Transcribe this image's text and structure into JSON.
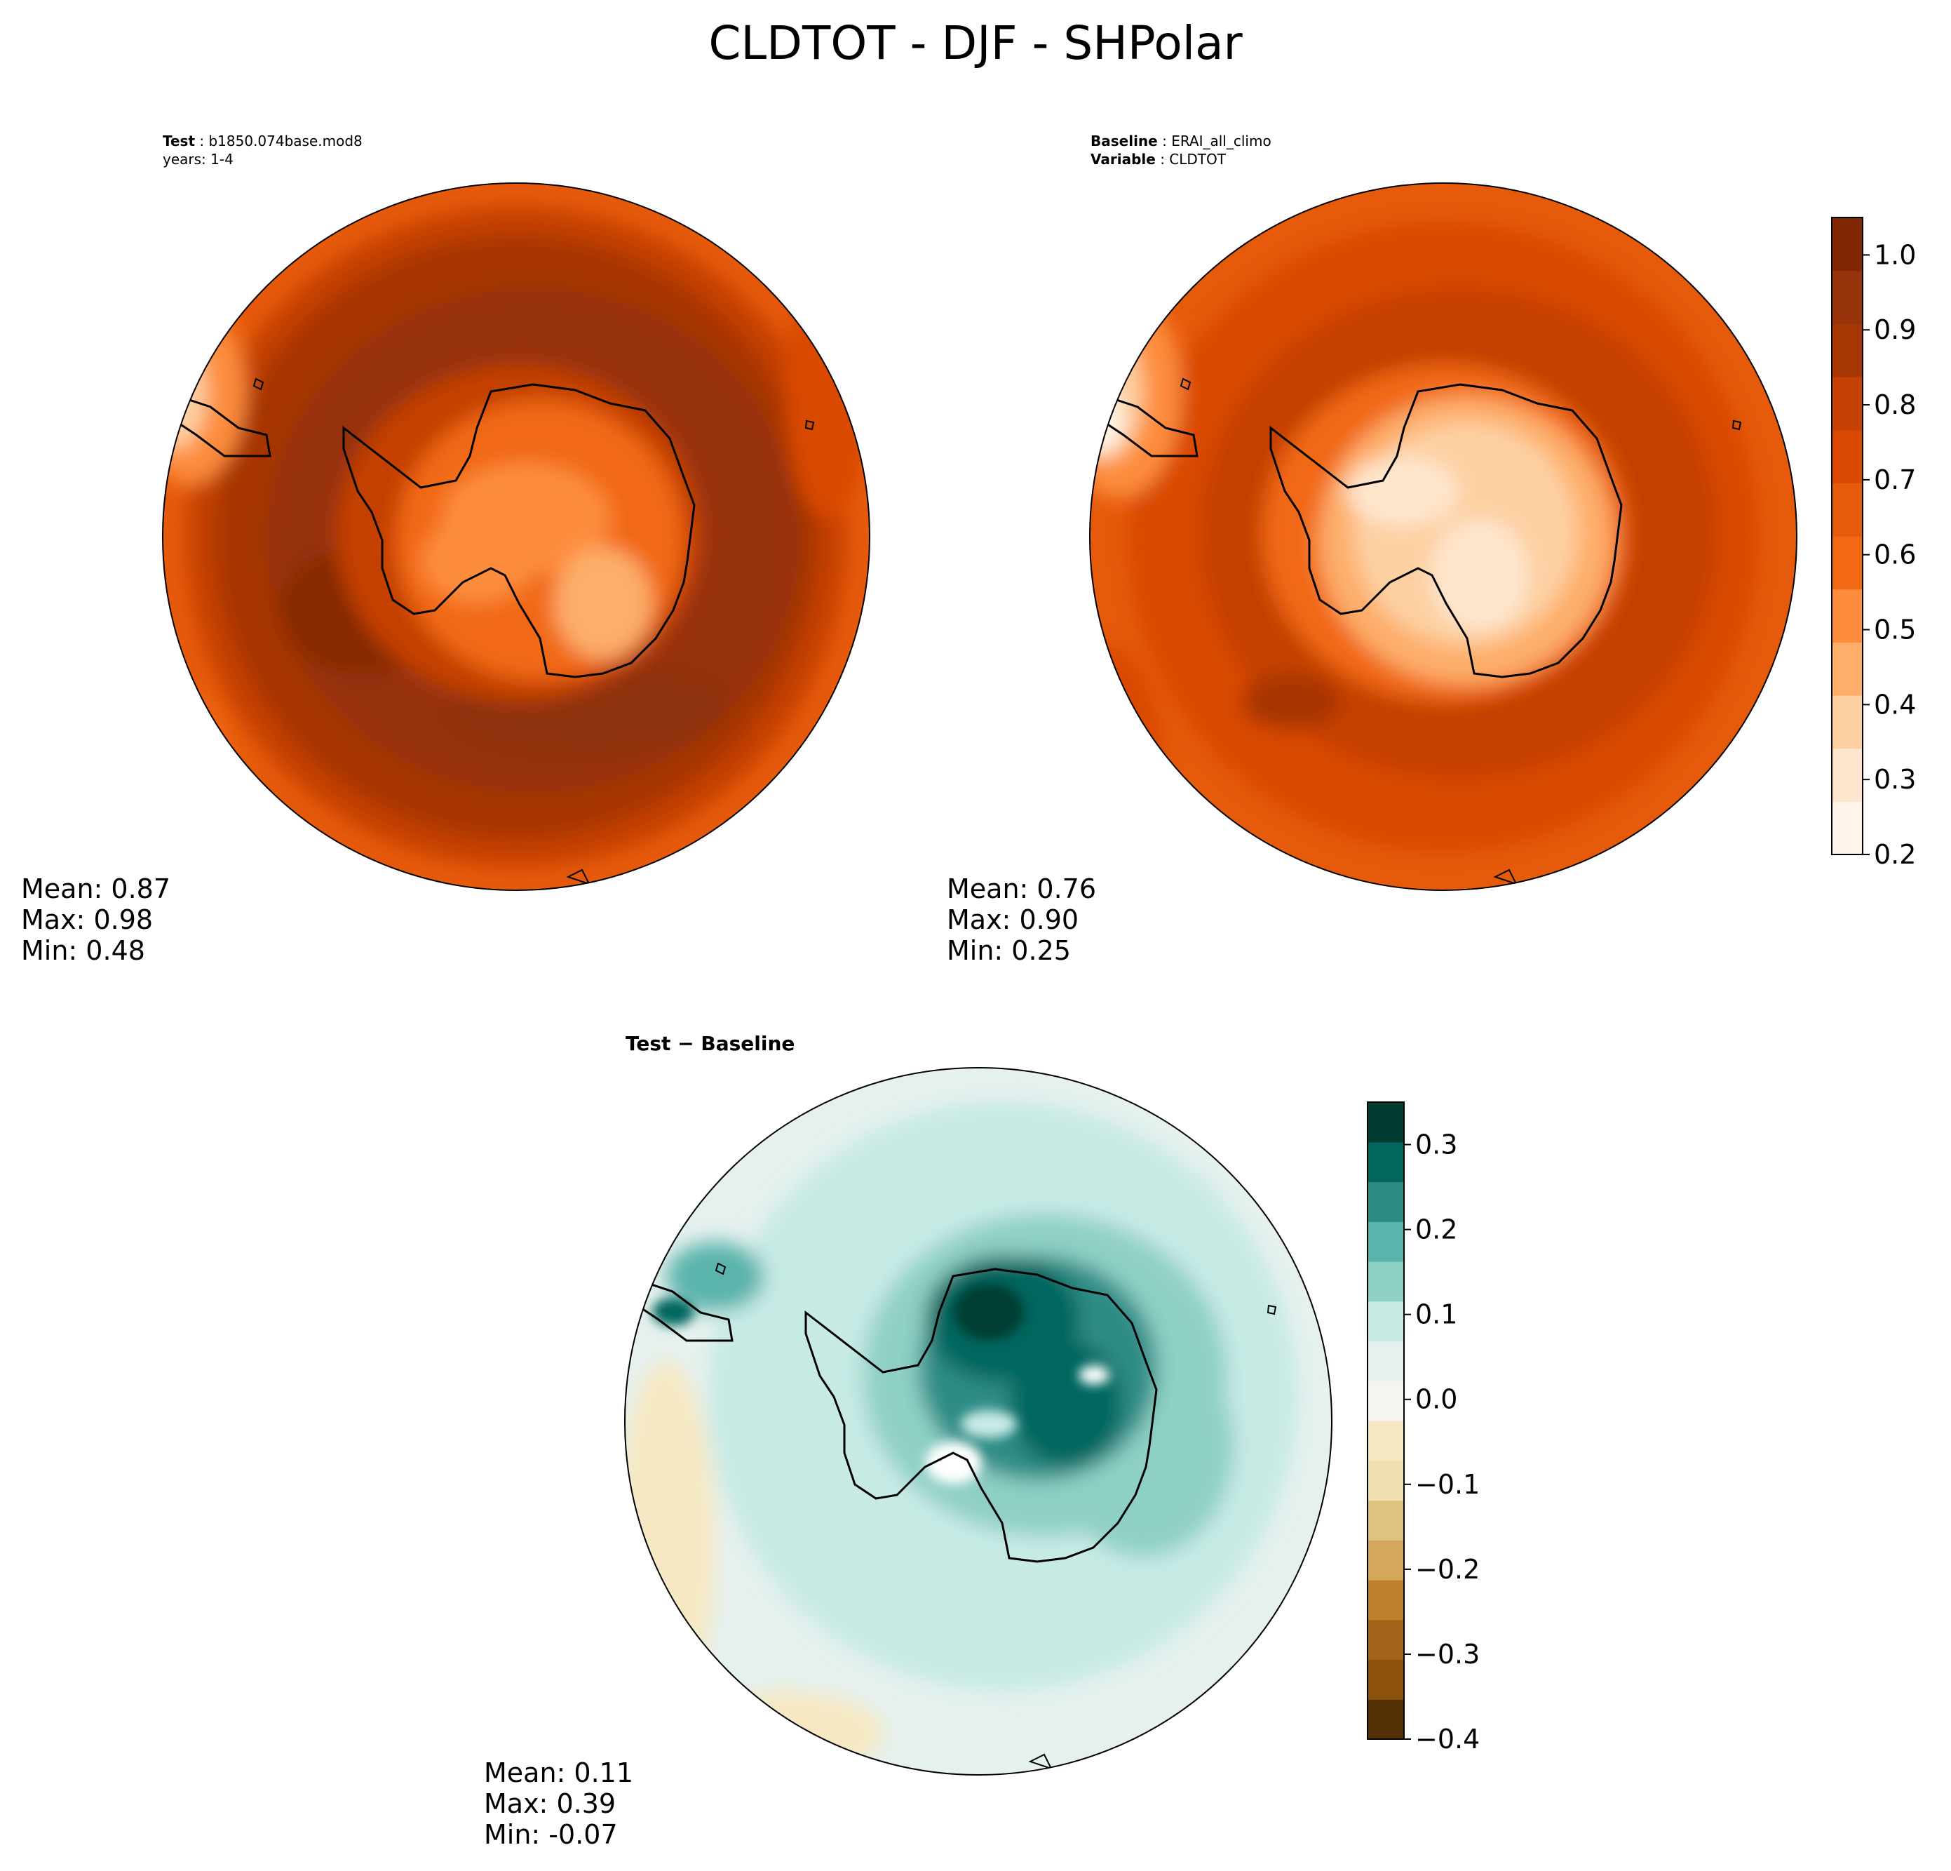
{
  "title": "CLDTOT - DJF - SHPolar",
  "panels": {
    "test": {
      "label_bold": "Test",
      "label_value": "b1850.074base.mod8",
      "years": "years: 1-4",
      "stats": [
        "Mean:  0.87",
        "Max:  0.98",
        "Min:  0.48"
      ]
    },
    "baseline": {
      "label_bold": "Baseline",
      "label_value": "ERAI_all_climo",
      "variable_bold": "Variable",
      "variable_value": "CLDTOT",
      "stats": [
        "Mean:  0.76",
        "Max:  0.90",
        "Min:  0.25"
      ]
    },
    "diff": {
      "title": "Test − Baseline",
      "stats": [
        "Mean:  0.11",
        "Max:  0.39",
        "Min: -0.07"
      ]
    }
  },
  "colors": {
    "oranges": [
      "#fff5eb",
      "#fee6ce",
      "#fdd0a2",
      "#fdae6b",
      "#fd8d3c",
      "#f16913",
      "#e65a0b",
      "#d94801",
      "#c44103",
      "#a63603",
      "#96330a",
      "#7f2704"
    ],
    "brbg": [
      "#543005",
      "#8c510a",
      "#a6641a",
      "#bf812d",
      "#d4a85c",
      "#dfc27d",
      "#f0dfb0",
      "#f6e8c3",
      "#f5f5f0",
      "#e6f1ef",
      "#c7eae5",
      "#8fd0c5",
      "#5ab4ac",
      "#2d8c86",
      "#01665e",
      "#003c30"
    ],
    "coast": "#000000"
  },
  "chart_data": [
    {
      "type": "heatmap",
      "panel": "test",
      "colorbar": {
        "ticks": [
          "0.2",
          "0.3",
          "0.4",
          "0.5",
          "0.6",
          "0.7",
          "0.8",
          "0.9",
          "1.0"
        ],
        "range": [
          0.2,
          1.05
        ]
      },
      "mean": 0.87,
      "max": 0.98,
      "min": 0.48
    },
    {
      "type": "heatmap",
      "panel": "baseline",
      "mean": 0.76,
      "max": 0.9,
      "min": 0.25
    },
    {
      "type": "heatmap",
      "panel": "diff",
      "colorbar": {
        "ticks": [
          "−0.4",
          "−0.3",
          "−0.2",
          "−0.1",
          "0.0",
          "0.1",
          "0.2",
          "0.3"
        ],
        "range": [
          -0.4,
          0.35
        ]
      },
      "mean": 0.11,
      "max": 0.39,
      "min": -0.07
    }
  ]
}
